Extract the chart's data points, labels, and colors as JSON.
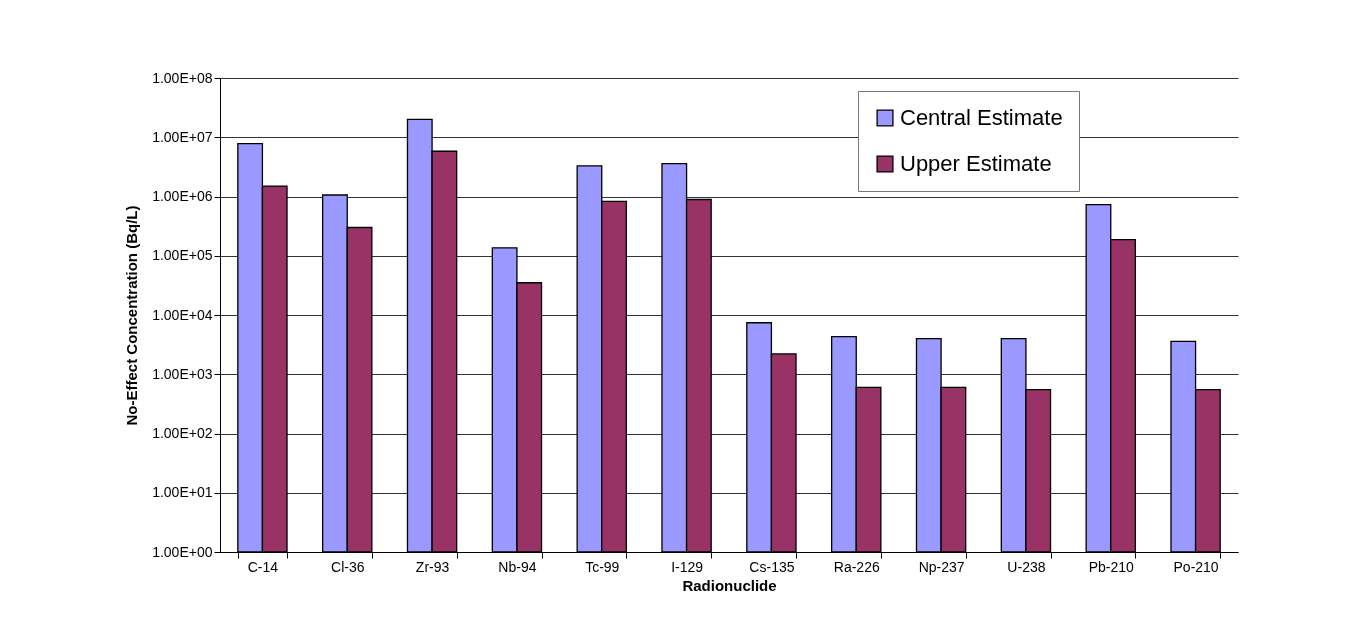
{
  "chart_data": {
    "type": "bar",
    "xlabel": "Radionuclide",
    "ylabel": "No-Effect Concentration (Bq/L)",
    "categories": [
      "C-14",
      "Cl-36",
      "Zr-93",
      "Nb-94",
      "Tc-99",
      "I-129",
      "Cs-135",
      "Ra-226",
      "Np-237",
      "U-238",
      "Pb-210",
      "Po-210"
    ],
    "series": [
      {
        "name": "Central Estimate",
        "color": "#9999ff",
        "values": [
          7800000,
          1060000,
          20000000,
          136000,
          3300000,
          3600000,
          7400,
          4300,
          4000,
          4000,
          730000,
          3600
        ]
      },
      {
        "name": "Upper Estimate",
        "color": "#993366",
        "values": [
          1500000,
          300000,
          5800000,
          35000,
          830000,
          890000,
          2200,
          600,
          600,
          550,
          187000,
          550
        ]
      }
    ],
    "log": true,
    "ylim": [
      1,
      100000000
    ],
    "yticks": [
      {
        "value": 1,
        "label": "1.00E+00"
      },
      {
        "value": 10,
        "label": "1.00E+01"
      },
      {
        "value": 100,
        "label": "1.00E+02"
      },
      {
        "value": 1000,
        "label": "1.00E+03"
      },
      {
        "value": 10000,
        "label": "1.00E+04"
      },
      {
        "value": 100000,
        "label": "1.00E+05"
      },
      {
        "value": 1000000,
        "label": "1.00E+06"
      },
      {
        "value": 10000000,
        "label": "1.00E+07"
      },
      {
        "value": 100000000,
        "label": "1.00E+08"
      }
    ],
    "grid": "y",
    "legend": "top right"
  }
}
